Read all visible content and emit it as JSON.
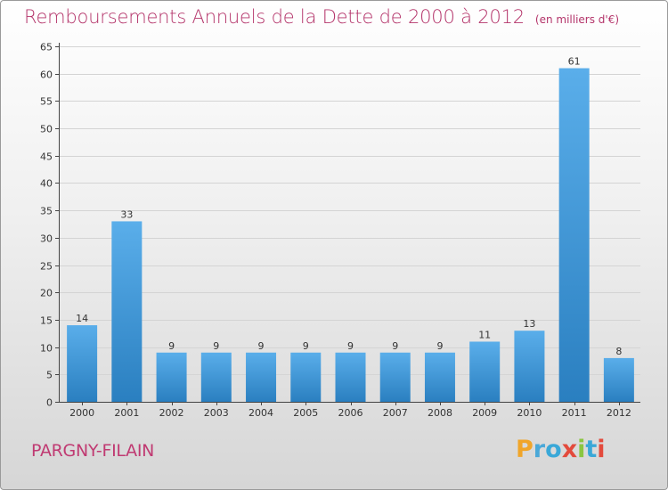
{
  "title": "Remboursements Annuels de la Dette de 2000 à 2012",
  "unit": "(en milliers d'€)",
  "commune": "PARGNY-FILAIN",
  "logo": {
    "text": "Proxiti",
    "colors": [
      "#f0a52a",
      "#4aa8d8",
      "#3aa8d8",
      "#e34a3c",
      "#8ac640",
      "#3aa8d8",
      "#e34a3c"
    ]
  },
  "colors": {
    "bar_top": "#5aaeea",
    "bar_bottom": "#2a7fc0",
    "title": "#b4346a",
    "commune": "#c03a72"
  },
  "chart_data": {
    "type": "bar",
    "title": "Remboursements Annuels de la Dette de 2000 à 2012",
    "ylabel": "",
    "xlabel": "",
    "categories": [
      "2000",
      "2001",
      "2002",
      "2003",
      "2004",
      "2005",
      "2006",
      "2007",
      "2008",
      "2009",
      "2010",
      "2011",
      "2012"
    ],
    "values": [
      14,
      33,
      9,
      9,
      9,
      9,
      9,
      9,
      9,
      11,
      13,
      61,
      8
    ],
    "ylim": [
      0,
      65
    ],
    "yticks": [
      0,
      5,
      10,
      15,
      20,
      25,
      30,
      35,
      40,
      45,
      50,
      55,
      60,
      65
    ],
    "grid": true
  }
}
